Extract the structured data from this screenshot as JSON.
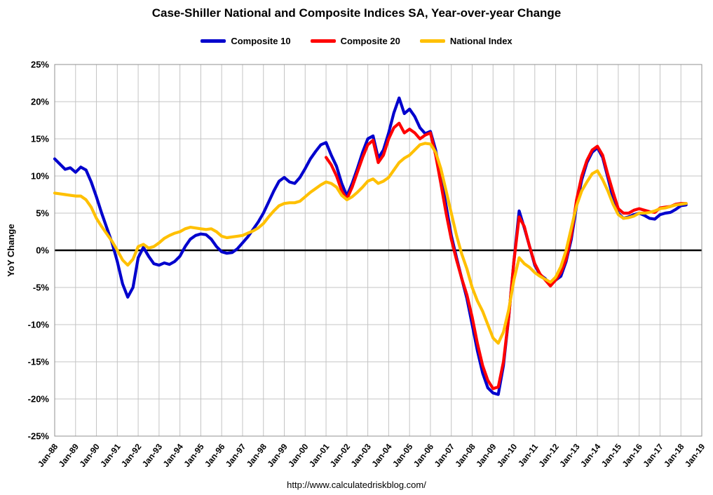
{
  "title": "Case-Shiller National and Composite Indices SA, Year-over-year Change",
  "footer_url": "http://www.calculatedriskblog.com/",
  "chart_data": {
    "type": "line",
    "title": "Case-Shiller National and Composite Indices SA, Year-over-year Change",
    "xlabel": "",
    "ylabel": "YoY Change",
    "ylim": [
      -25,
      25
    ],
    "yticks": [
      25,
      20,
      15,
      10,
      5,
      0,
      -5,
      -10,
      -15,
      -20,
      -25
    ],
    "ytick_labels": [
      "25%",
      "20%",
      "15%",
      "10%",
      "5%",
      "0%",
      "-5%",
      "-10%",
      "-15%",
      "-20%",
      "-25%"
    ],
    "xtick_labels": [
      "Jan-88",
      "Jan-89",
      "Jan-90",
      "Jan-91",
      "Jan-92",
      "Jan-93",
      "Jan-94",
      "Jan-95",
      "Jan-96",
      "Jan-97",
      "Jan-98",
      "Jan-99",
      "Jan-00",
      "Jan-01",
      "Jan-02",
      "Jan-03",
      "Jan-04",
      "Jan-05",
      "Jan-06",
      "Jan-07",
      "Jan-08",
      "Jan-09",
      "Jan-10",
      "Jan-11",
      "Jan-12",
      "Jan-13",
      "Jan-14",
      "Jan-15",
      "Jan-16",
      "Jan-17",
      "Jan-18",
      "Jan-19"
    ],
    "x_start_year": 1988,
    "x_end_year": 2019,
    "grid": true,
    "legend_position": "top-center",
    "colors": {
      "grid": "#c4c4c4",
      "border": "#909090",
      "zero_line": "#000000"
    },
    "draw_order": [
      0,
      1,
      2
    ],
    "series": [
      {
        "name": "Composite 10",
        "color": "#0000CD",
        "x_start": 1988.0,
        "x_step": 0.25,
        "values": [
          12.3,
          11.6,
          10.9,
          11.1,
          10.5,
          11.2,
          10.8,
          9.2,
          7.2,
          5.0,
          3.0,
          1.0,
          -1.5,
          -4.5,
          -6.3,
          -5.0,
          -1.0,
          0.4,
          -0.8,
          -1.8,
          -2.0,
          -1.7,
          -1.9,
          -1.5,
          -0.8,
          0.5,
          1.5,
          2.0,
          2.2,
          2.1,
          1.5,
          0.5,
          -0.2,
          -0.4,
          -0.3,
          0.2,
          1.0,
          1.8,
          2.8,
          3.8,
          5.0,
          6.5,
          8.0,
          9.3,
          9.8,
          9.2,
          9.0,
          9.8,
          11.0,
          12.3,
          13.3,
          14.2,
          14.5,
          12.8,
          11.3,
          9.0,
          7.3,
          9.0,
          11.0,
          13.2,
          15.0,
          15.4,
          12.4,
          13.5,
          15.8,
          18.5,
          20.5,
          18.4,
          19.0,
          18.0,
          16.5,
          15.7,
          16.0,
          13.5,
          10.0,
          6.0,
          2.0,
          -1.0,
          -3.8,
          -6.5,
          -10.0,
          -13.5,
          -16.5,
          -18.5,
          -19.2,
          -19.4,
          -15.5,
          -9.0,
          -1.5,
          5.3,
          3.0,
          0.5,
          -2.0,
          -3.3,
          -3.8,
          -4.7,
          -4.0,
          -3.5,
          -1.5,
          1.5,
          6.0,
          9.5,
          11.8,
          13.2,
          13.8,
          12.5,
          9.8,
          7.0,
          5.0,
          4.3,
          4.5,
          4.8,
          5.0,
          4.7,
          4.3,
          4.2,
          4.8,
          5.0,
          5.1,
          5.5,
          6.0,
          6.1
        ]
      },
      {
        "name": "Composite 20",
        "color": "#FF0000",
        "x_start": 2001.0,
        "x_step": 0.25,
        "values": [
          12.5,
          11.5,
          10.0,
          8.0,
          6.9,
          8.5,
          10.5,
          12.5,
          14.2,
          14.8,
          11.8,
          12.8,
          15.0,
          16.5,
          17.1,
          15.8,
          16.3,
          15.8,
          15.0,
          15.5,
          15.8,
          12.8,
          9.0,
          5.0,
          1.5,
          -1.3,
          -3.8,
          -6.0,
          -9.0,
          -12.5,
          -15.5,
          -17.5,
          -18.6,
          -18.4,
          -15.0,
          -9.0,
          -1.5,
          4.5,
          3.2,
          0.5,
          -1.8,
          -3.2,
          -4.0,
          -4.8,
          -4.0,
          -3.0,
          -1.2,
          2.0,
          6.8,
          10.0,
          12.1,
          13.5,
          14.0,
          12.8,
          10.2,
          7.8,
          5.6,
          5.0,
          5.0,
          5.4,
          5.6,
          5.4,
          5.2,
          5.1,
          5.7,
          5.8,
          5.9,
          6.2,
          6.3,
          6.3
        ]
      },
      {
        "name": "National Index",
        "color": "#FFC000",
        "x_start": 1988.0,
        "x_step": 0.25,
        "values": [
          7.7,
          7.6,
          7.5,
          7.4,
          7.3,
          7.3,
          6.8,
          5.8,
          4.3,
          3.2,
          2.2,
          1.2,
          0.0,
          -1.3,
          -2.0,
          -1.2,
          0.5,
          0.8,
          0.3,
          0.5,
          1.0,
          1.6,
          2.0,
          2.3,
          2.5,
          2.9,
          3.1,
          3.0,
          2.9,
          2.8,
          2.9,
          2.5,
          1.9,
          1.7,
          1.8,
          1.9,
          2.0,
          2.3,
          2.6,
          3.0,
          3.6,
          4.5,
          5.3,
          6.0,
          6.3,
          6.4,
          6.4,
          6.6,
          7.2,
          7.8,
          8.3,
          8.8,
          9.2,
          9.0,
          8.5,
          7.4,
          6.8,
          7.2,
          7.8,
          8.5,
          9.3,
          9.6,
          9.0,
          9.3,
          9.8,
          10.8,
          11.8,
          12.4,
          12.8,
          13.5,
          14.2,
          14.4,
          14.3,
          13.2,
          11.0,
          8.0,
          5.0,
          2.0,
          -0.5,
          -2.5,
          -5.0,
          -6.8,
          -8.2,
          -10.0,
          -11.8,
          -12.5,
          -11.0,
          -8.0,
          -4.0,
          -1.0,
          -1.8,
          -2.3,
          -3.0,
          -3.5,
          -3.9,
          -4.3,
          -3.6,
          -2.2,
          0.0,
          3.0,
          6.0,
          8.0,
          9.2,
          10.3,
          10.7,
          9.5,
          8.0,
          6.2,
          4.8,
          4.3,
          4.4,
          4.6,
          5.0,
          5.0,
          5.1,
          5.3,
          5.6,
          5.7,
          5.9,
          6.1,
          6.2,
          6.3
        ]
      }
    ]
  }
}
